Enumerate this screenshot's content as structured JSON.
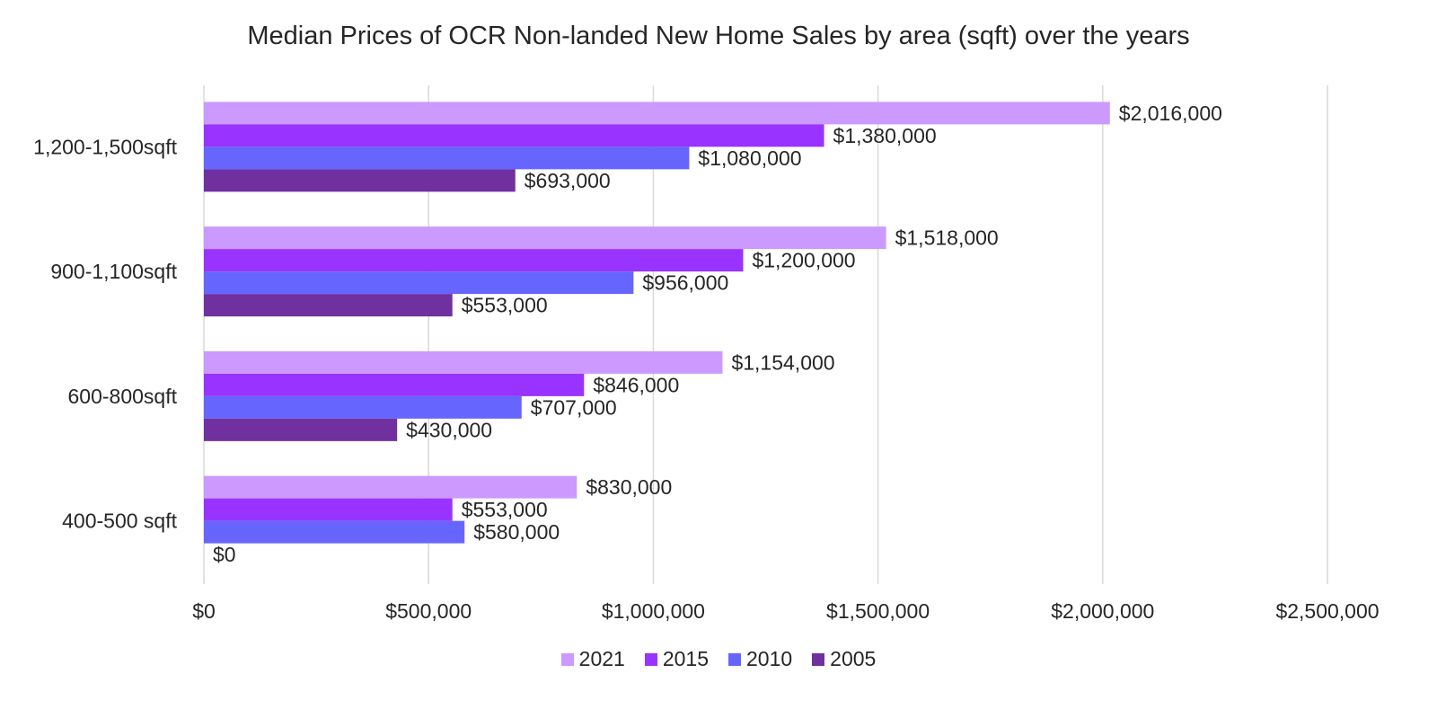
{
  "chart_data": {
    "type": "bar",
    "orientation": "horizontal",
    "title": "Median Prices of OCR Non-landed New Home Sales by area (sqft) over the years",
    "categories": [
      "1,200-1,500sqft",
      "900-1,100sqft",
      "600-800sqft",
      "400-500 sqft"
    ],
    "series": [
      {
        "name": "2021",
        "color": "#cc99ff",
        "values": [
          2016000,
          1518000,
          1154000,
          830000
        ],
        "labels": [
          "$2,016,000",
          "$1,518,000",
          "$1,154,000",
          "$830,000"
        ]
      },
      {
        "name": "2015",
        "color": "#9933ff",
        "values": [
          1380000,
          1200000,
          846000,
          553000
        ],
        "labels": [
          "$1,380,000",
          "$1,200,000",
          "$846,000",
          "$553,000"
        ]
      },
      {
        "name": "2010",
        "color": "#6666ff",
        "values": [
          1080000,
          956000,
          707000,
          580000
        ],
        "labels": [
          "$1,080,000",
          "$956,000",
          "$707,000",
          "$580,000"
        ]
      },
      {
        "name": "2005",
        "color": "#7030a0",
        "values": [
          693000,
          553000,
          430000,
          0
        ],
        "labels": [
          "$693,000",
          "$553,000",
          "$430,000",
          "$0"
        ]
      }
    ],
    "xlim": [
      0,
      2500000
    ],
    "xticks": [
      0,
      500000,
      1000000,
      1500000,
      2000000,
      2500000
    ],
    "xtick_labels": [
      "$0",
      "$500,000",
      "$1,000,000",
      "$1,500,000",
      "$2,000,000",
      "$2,500,000"
    ],
    "grid": true,
    "legend_position": "bottom"
  }
}
